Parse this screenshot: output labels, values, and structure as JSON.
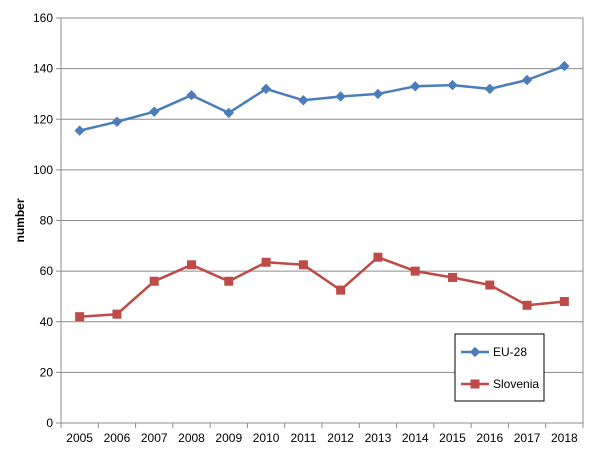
{
  "chart_data": {
    "type": "line",
    "title": "",
    "xlabel": "",
    "ylabel": "number",
    "ylim": [
      0,
      160
    ],
    "yticks": [
      0,
      20,
      40,
      60,
      80,
      100,
      120,
      140,
      160
    ],
    "grid": "horizontal",
    "legend_position": "bottom-right",
    "categories": [
      "2005",
      "2006",
      "2007",
      "2008",
      "2009",
      "2010",
      "2011",
      "2012",
      "2013",
      "2014",
      "2015",
      "2016",
      "2017",
      "2018"
    ],
    "series": [
      {
        "name": "EU-28",
        "color": "#4a7ebb",
        "marker": "diamond",
        "values": [
          115.5,
          119,
          123,
          129.5,
          122.5,
          132,
          127.5,
          129,
          130,
          133,
          133.5,
          132,
          135.5,
          141
        ]
      },
      {
        "name": "Slovenia",
        "color": "#be4b48",
        "marker": "square",
        "values": [
          42,
          43,
          56,
          62.5,
          56,
          63.5,
          62.5,
          52.5,
          65.5,
          60,
          57.5,
          54.5,
          46.5,
          48
        ]
      }
    ]
  }
}
